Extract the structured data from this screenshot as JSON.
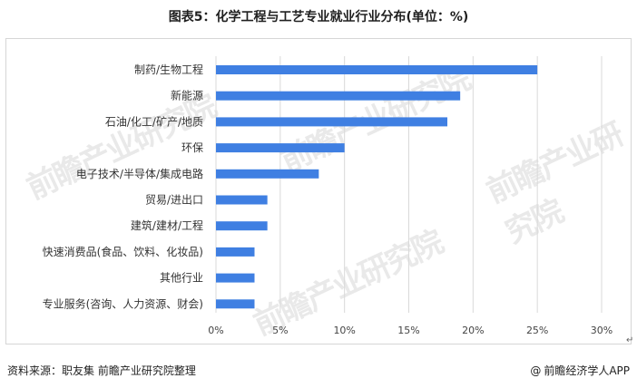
{
  "title": "图表5：化学工程与工艺专业就业行业分布(单位：%)",
  "watermark": "前瞻产业研究院",
  "footer": {
    "source": "资料来源：职友集 前瞻产业研究院整理",
    "credit": "前瞻经济学人APP",
    "credit_icon": "at-icon"
  },
  "colors": {
    "bar": "#3f7fe2",
    "grid": "#d9d9d9",
    "frame": "#d6d6d6"
  },
  "chart_data": {
    "type": "bar",
    "orientation": "horizontal",
    "title": "图表5：化学工程与工艺专业就业行业分布(单位：%)",
    "categories": [
      "制药/生物工程",
      "新能源",
      "石油/化工/矿产/地质",
      "环保",
      "电子技术/半导体/集成电路",
      "贸易/进出口",
      "建筑/建材/工程",
      "快速消费品(食品、饮料、化妆品)",
      "其他行业",
      "专业服务(咨询、人力资源、财会)"
    ],
    "values": [
      25,
      19,
      18,
      10,
      8,
      4,
      4,
      3,
      3,
      3
    ],
    "xlim": [
      0,
      30
    ],
    "xticks": [
      0,
      5,
      10,
      15,
      20,
      25,
      30
    ],
    "xtick_labels": [
      "0%",
      "5%",
      "10%",
      "15%",
      "20%",
      "25%",
      "30%"
    ],
    "grid": true,
    "legend": false
  }
}
